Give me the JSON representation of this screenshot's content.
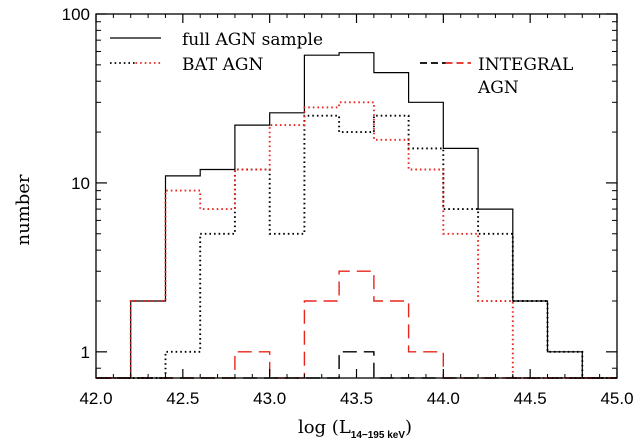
{
  "chart_data": {
    "type": "histogram",
    "xlabel": "log (L",
    "xlabel_subscript": "14−195 keV",
    "xlabel_close": ")",
    "ylabel": "number",
    "xlim": [
      42.0,
      45.0
    ],
    "ylim": [
      0.7,
      100
    ],
    "yscale": "log",
    "x_ticks": [
      "42.0",
      "42.5",
      "43.0",
      "43.5",
      "44.0",
      "44.5",
      "45.0"
    ],
    "x_tick_values": [
      42.0,
      42.5,
      43.0,
      43.5,
      44.0,
      44.5,
      45.0
    ],
    "y_ticks": [
      "1",
      "10",
      "100"
    ],
    "y_tick_values": [
      1,
      10,
      100
    ],
    "bin_edges": [
      42.0,
      42.2,
      42.4,
      42.6,
      42.8,
      43.0,
      43.2,
      43.4,
      43.6,
      43.8,
      44.0,
      44.2,
      44.4,
      44.6,
      44.8,
      45.0
    ],
    "legend_position": "top",
    "series": [
      {
        "name": "full AGN sample",
        "style": "solid",
        "colors": [
          "#000000"
        ],
        "values": [
          0,
          2,
          11,
          12,
          22,
          26,
          57,
          59,
          45,
          30,
          16,
          7,
          2,
          1,
          0
        ]
      },
      {
        "name": "BAT AGN",
        "style": "dotted",
        "colors": [
          "#000000",
          "#e8261d"
        ],
        "values": [
          0,
          0,
          1,
          5,
          12,
          5,
          25,
          20,
          25,
          16,
          7,
          5,
          2,
          1,
          0
        ]
      },
      {
        "name": "BAT AGN",
        "style": "dotted",
        "colors": [
          "#e8261d"
        ],
        "values": [
          0,
          2,
          9,
          7,
          12,
          22,
          28,
          30,
          18,
          12,
          5,
          2,
          0,
          0,
          0
        ]
      },
      {
        "name": "INTEGRAL AGN",
        "style": "dashed",
        "colors": [
          "#e8261d"
        ],
        "values": [
          0,
          0,
          0,
          0,
          1,
          0,
          2,
          3,
          2,
          1,
          0,
          0,
          0,
          0,
          0
        ]
      },
      {
        "name": "INTEGRAL AGN",
        "style": "dashed",
        "colors": [
          "#000000"
        ],
        "values": [
          0,
          0,
          0,
          0,
          0,
          0,
          0,
          1,
          0,
          0,
          0,
          0,
          0,
          0,
          0
        ]
      }
    ],
    "legend": [
      {
        "label": "full AGN sample",
        "style": "solid",
        "colors": [
          "#000000"
        ]
      },
      {
        "label": "BAT AGN",
        "style": "dotted",
        "colors": [
          "#000000",
          "#e8261d"
        ]
      },
      {
        "label_lines": [
          "INTEGRAL",
          "AGN"
        ],
        "style": "dashed",
        "colors": [
          "#000000",
          "#e8261d"
        ]
      }
    ]
  }
}
